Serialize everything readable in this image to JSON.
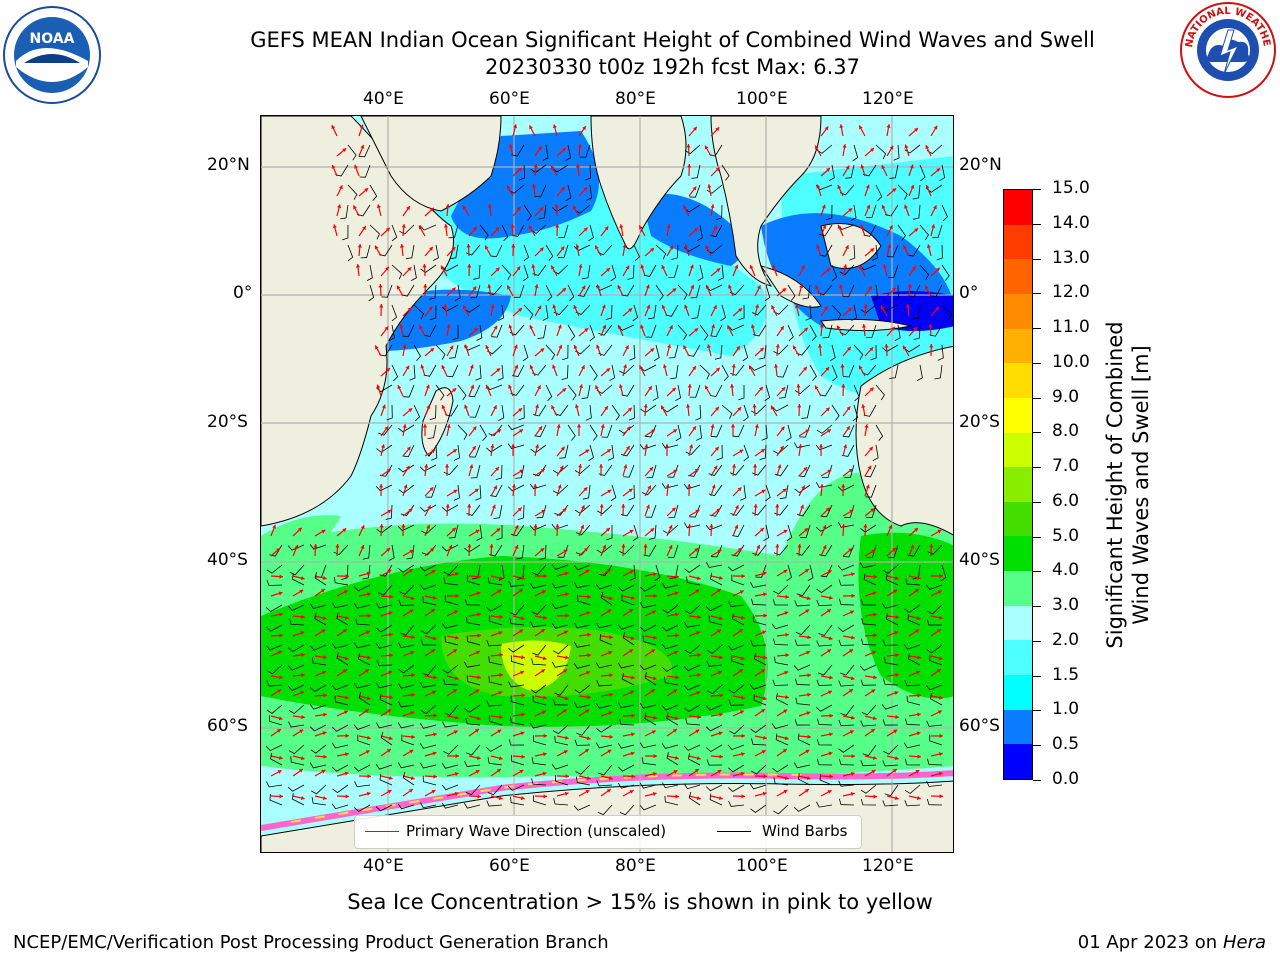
{
  "header": {
    "title_line1": "GEFS MEAN Indian Ocean Significant Height of Combined Wind Waves and Swell",
    "title_line2": "20230330 t00z 192h fcst   Max: 6.37"
  },
  "map": {
    "lon_ticks_top": [
      "40°E",
      "60°E",
      "80°E",
      "100°E",
      "120°E"
    ],
    "lon_ticks_bottom": [
      "40°E",
      "60°E",
      "80°E",
      "100°E",
      "120°E"
    ],
    "lat_ticks_left": [
      "20°N",
      "0°",
      "20°S",
      "40°S",
      "60°S"
    ],
    "lat_ticks_right": [
      "20°N",
      "0°",
      "20°S",
      "40°S",
      "60°S"
    ]
  },
  "colorbar": {
    "label_line1": "Significant Height of Combined",
    "label_line2": "Wind Waves and Swell [m]",
    "ticks": [
      "0.0",
      "0.5",
      "1.0",
      "1.5",
      "2.0",
      "3.0",
      "4.0",
      "5.0",
      "6.0",
      "7.0",
      "8.0",
      "9.0",
      "10.0",
      "11.0",
      "12.0",
      "13.0",
      "14.0",
      "15.0"
    ],
    "colors": [
      "#0000ff",
      "#0a7cff",
      "#00ffff",
      "#4dffff",
      "#aaffff",
      "#55ff88",
      "#00e000",
      "#44dd00",
      "#88ee00",
      "#ccff00",
      "#ffff00",
      "#ffdd00",
      "#ffb000",
      "#ff8c00",
      "#ff6400",
      "#ff3c00",
      "#ff0000"
    ]
  },
  "legend": {
    "wave_direction": "Primary Wave Direction (unscaled)",
    "wind_barbs": "Wind Barbs",
    "wave_color": "#ff0000",
    "barb_color": "#000000"
  },
  "footer": {
    "sea_ice_note": "Sea Ice Concentration > 15% is shown in pink to yellow",
    "branch": "NCEP/EMC/Verification Post Processing Product Generation Branch",
    "date": "01 Apr 2023 on",
    "machine": "Hera"
  },
  "logos": {
    "noaa_text": "NOAA",
    "nws_text": "NATIONAL WEATHER SERVICE"
  },
  "icons": {
    "left_logo": "noaa-logo-icon",
    "right_logo": "nws-logo-icon"
  }
}
